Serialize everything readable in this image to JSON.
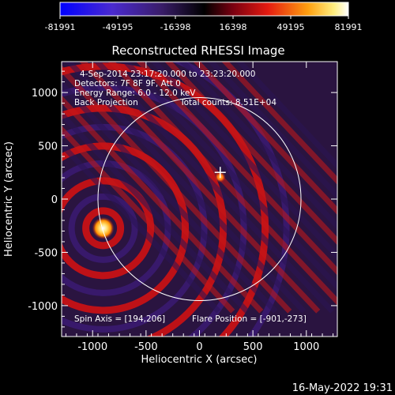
{
  "chart_data": {
    "type": "heatmap",
    "title": "Reconstructed RHESSI Image",
    "xlabel": "Heliocentric X (arcsec)",
    "ylabel": "Heliocentric Y (arcsec)",
    "xlim": [
      -1290,
      1290
    ],
    "ylim": [
      -1290,
      1290
    ],
    "x_ticks": [
      -1000,
      -500,
      0,
      500,
      1000
    ],
    "y_ticks": [
      -1000,
      -500,
      0,
      500,
      1000
    ],
    "colorbar": {
      "min": -81991,
      "max": 81991,
      "tick_values": [
        -81991,
        -49195,
        -16398,
        16398,
        49195,
        81991
      ],
      "tick_labels": [
        "-81991",
        "-49195",
        "-16398",
        "16398",
        "49195",
        "81991"
      ]
    },
    "annotations": {
      "time_range": "4-Sep-2014 23:17:20.000 to 23:23:20.000",
      "detectors": "Detectors: 7F 8F 9F, Att 0",
      "energy_range": "Energy Range: 6.0 - 12.0 keV",
      "method": "Back Projection",
      "total_counts": "Total counts: 8.51E+04",
      "spin_axis": "Spin Axis = [194,206]",
      "flare_position": "Flare Position = [-901,-273]"
    },
    "solar_limb_radius_arcsec": 950,
    "sources": [
      {
        "x": -901,
        "y": -273,
        "peak": 81991
      },
      {
        "x": 194,
        "y": 206,
        "peak": 30000
      }
    ],
    "plot_timestamp": "16-May-2022 19:31"
  }
}
